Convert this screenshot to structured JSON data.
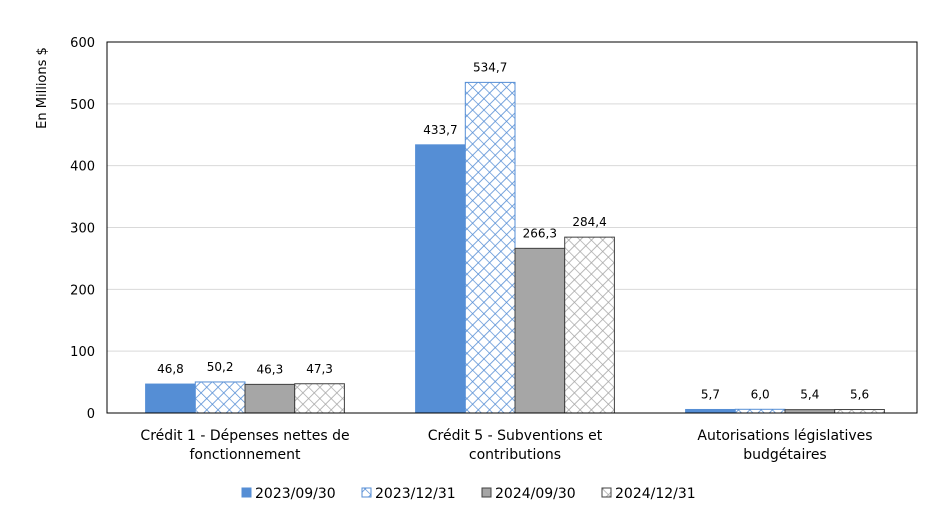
{
  "chart_data": {
    "type": "bar",
    "ylabel": "En Millions $",
    "ylim": [
      0,
      600
    ],
    "yticks": [
      0,
      100,
      200,
      300,
      400,
      500,
      600
    ],
    "grid": true,
    "legend_position": "bottom",
    "categories": [
      [
        "Crédit 1 - Dépenses nettes de",
        "fonctionnement"
      ],
      [
        "Crédit 5 - Subventions et",
        "contributions"
      ],
      [
        "Autorisations législatives",
        "budgétaires"
      ]
    ],
    "series": [
      {
        "name": "2023/09/30",
        "values": [
          46.8,
          433.7,
          5.7
        ],
        "labels": [
          "46,8",
          "433,7",
          "5,7"
        ],
        "color": "#558ed5",
        "fill": "solid"
      },
      {
        "name": "2023/12/31",
        "values": [
          50.2,
          534.7,
          6.0
        ],
        "labels": [
          "50,2",
          "534,7",
          "6,0"
        ],
        "color": "#558ed5",
        "fill": "hatch"
      },
      {
        "name": "2024/09/30",
        "values": [
          46.3,
          266.3,
          5.4
        ],
        "labels": [
          "46,3",
          "266,3",
          "5,4"
        ],
        "color": "#a6a6a6",
        "fill": "solid"
      },
      {
        "name": "2024/12/31",
        "values": [
          47.3,
          284.4,
          5.6
        ],
        "labels": [
          "47,3",
          "284,4",
          "5,6"
        ],
        "color": "#bfbfbf",
        "fill": "hatch"
      }
    ]
  }
}
